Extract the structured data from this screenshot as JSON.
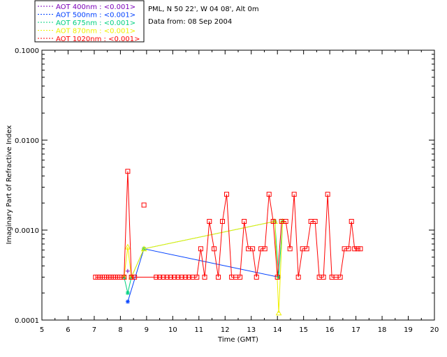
{
  "chart_data": {
    "type": "line",
    "title": "",
    "info": {
      "site": "PML, N 50 22', W 04 08', Alt 0m",
      "date": "Data from: 08 Sep 2004"
    },
    "xlabel": "Time (GMT)",
    "ylabel": "Imaginary Part of Refractive Index",
    "xlim": [
      5,
      20
    ],
    "ylim": [
      0.0001,
      0.1
    ],
    "yscale": "log",
    "grid": false,
    "legend_position": "top-left, above plot",
    "x_ticks": [
      "5",
      "6",
      "7",
      "8",
      "9",
      "10",
      "11",
      "12",
      "13",
      "14",
      "15",
      "16",
      "17",
      "18",
      "19",
      "20"
    ],
    "x_tick_values": [
      5,
      6,
      7,
      8,
      9,
      10,
      11,
      12,
      13,
      14,
      15,
      16,
      17,
      18,
      19,
      20
    ],
    "y_ticks": [
      "0.0001",
      "0.0010",
      "0.0100",
      "0.1000"
    ],
    "y_tick_values": [
      0.0001,
      0.001,
      0.01,
      0.1
    ],
    "series": [
      {
        "name": "AOT  400nm : <0.001>",
        "color": "#7a00b8",
        "marker": "plus",
        "x": [
          8.28
        ],
        "y": [
          0.00035
        ]
      },
      {
        "name": "AOT  500nm : <0.001>",
        "color": "#0040ff",
        "marker": "asterisk",
        "x": [
          8.28,
          8.9,
          14.05
        ],
        "y": [
          0.00016,
          0.00062,
          0.0003
        ]
      },
      {
        "name": "AOT  675nm : <0.001>",
        "color": "#00d080",
        "marker": "asterisk",
        "x": [
          8.14,
          8.28,
          8.42,
          8.9,
          13.9,
          14.05,
          14.2
        ],
        "y": [
          0.0003,
          0.0002,
          0.0003,
          0.00062,
          0.00125,
          0.0003,
          0.00125
        ]
      },
      {
        "name": "AOT  870nm : <0.001>",
        "color": "#f0f000",
        "marker": "triangle",
        "x": [
          8.14,
          8.28,
          8.42,
          8.9,
          13.9,
          14.05,
          14.2
        ],
        "y": [
          0.0003,
          0.00065,
          0.0003,
          0.00062,
          0.00125,
          0.00012,
          0.00125
        ]
      },
      {
        "name": "AOT 1020nm : <0.001>",
        "color": "#ff0000",
        "marker": "square",
        "x": [
          7.05,
          7.14,
          7.22,
          7.31,
          7.39,
          7.47,
          7.56,
          7.64,
          7.73,
          7.81,
          7.9,
          7.98,
          8.14,
          8.28,
          8.42,
          8.54,
          9.37,
          9.5,
          9.64,
          9.78,
          9.92,
          10.06,
          10.2,
          10.34,
          10.48,
          10.62,
          10.76,
          10.92,
          11.07,
          11.22,
          11.4,
          11.58,
          11.74,
          11.9,
          12.06,
          12.25,
          12.41,
          12.57,
          12.73,
          12.89,
          13.05,
          13.2,
          13.37,
          13.52,
          13.68,
          13.84,
          14.0,
          14.16,
          14.32,
          14.48,
          14.64,
          14.8,
          14.96,
          15.12,
          15.28,
          15.44,
          15.6,
          15.76,
          15.92,
          16.08,
          16.24,
          16.4,
          16.56,
          16.72,
          16.83,
          16.95,
          17.07,
          17.17
        ],
        "y": [
          0.0003,
          0.0003,
          0.0003,
          0.0003,
          0.0003,
          0.0003,
          0.0003,
          0.0003,
          0.0003,
          0.0003,
          0.0003,
          0.0003,
          0.0003,
          0.0045,
          0.0003,
          0.0003,
          0.0003,
          0.0003,
          0.0003,
          0.0003,
          0.0003,
          0.0003,
          0.0003,
          0.0003,
          0.0003,
          0.0003,
          0.0003,
          0.0003,
          0.00062,
          0.0003,
          0.00125,
          0.00062,
          0.0003,
          0.00125,
          0.0025,
          0.0003,
          0.0003,
          0.0003,
          0.00125,
          0.00062,
          0.00062,
          0.0003,
          0.00062,
          0.00062,
          0.0025,
          0.00125,
          0.0003,
          0.00125,
          0.00125,
          0.00062,
          0.0025,
          0.0003,
          0.00062,
          0.00062,
          0.00125,
          0.00125,
          0.0003,
          0.0003,
          0.0025,
          0.0003,
          0.0003,
          0.0003,
          0.00062,
          0.00062,
          0.00125,
          0.00062,
          0.00062,
          0.00062
        ],
        "extra_points": {
          "x": [
            8.9
          ],
          "y": [
            0.0019
          ]
        }
      }
    ]
  }
}
